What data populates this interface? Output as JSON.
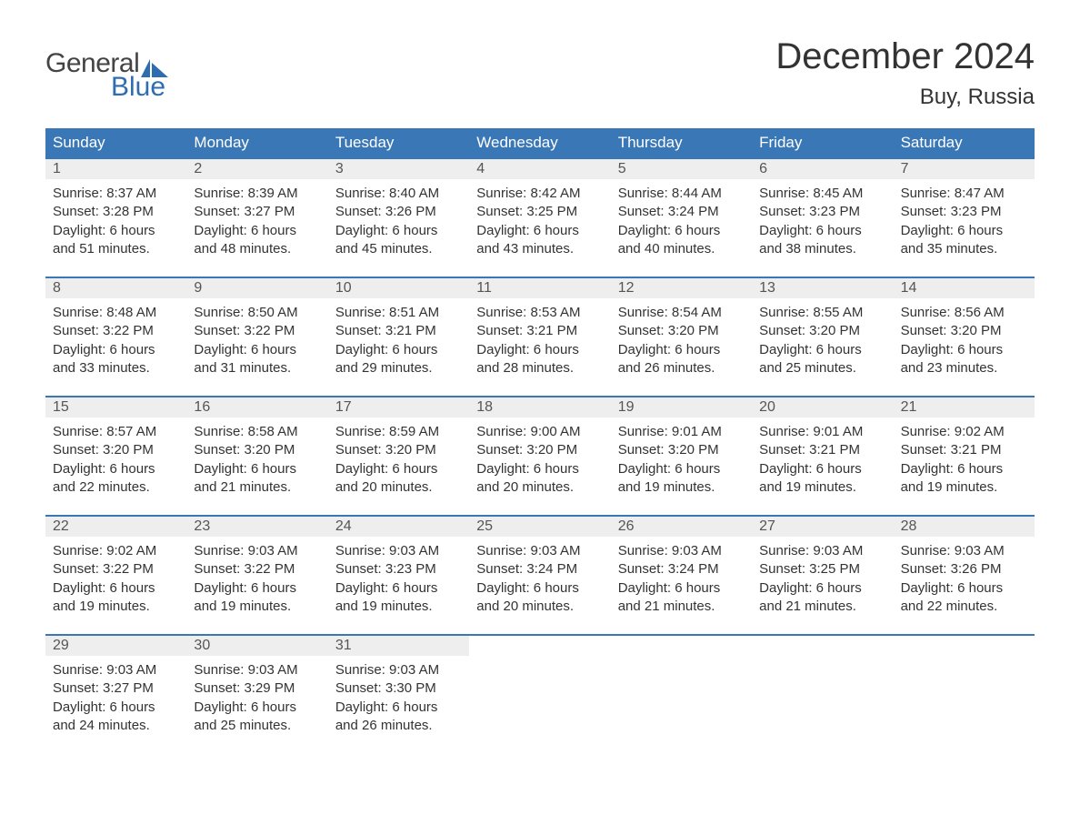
{
  "logo": {
    "text_general": "General",
    "text_blue": "Blue",
    "flag_color": "#2e6eb0",
    "general_color": "#444444",
    "blue_color": "#2e6eb0"
  },
  "header": {
    "month_title": "December 2024",
    "location": "Buy, Russia"
  },
  "colors": {
    "header_bg": "#3a77b7",
    "header_text": "#ffffff",
    "week_border": "#3a77b7",
    "daynum_bg": "#eeeeee",
    "daynum_text": "#555555",
    "body_text": "#333333",
    "page_bg": "#ffffff"
  },
  "typography": {
    "month_title_fontsize": 40,
    "location_fontsize": 24,
    "weekday_fontsize": 17,
    "daynum_fontsize": 16,
    "body_fontsize": 15,
    "font_family": "Arial"
  },
  "weekdays": [
    "Sunday",
    "Monday",
    "Tuesday",
    "Wednesday",
    "Thursday",
    "Friday",
    "Saturday"
  ],
  "weeks": [
    [
      {
        "day": "1",
        "sunrise": "Sunrise: 8:37 AM",
        "sunset": "Sunset: 3:28 PM",
        "daylight1": "Daylight: 6 hours",
        "daylight2": "and 51 minutes."
      },
      {
        "day": "2",
        "sunrise": "Sunrise: 8:39 AM",
        "sunset": "Sunset: 3:27 PM",
        "daylight1": "Daylight: 6 hours",
        "daylight2": "and 48 minutes."
      },
      {
        "day": "3",
        "sunrise": "Sunrise: 8:40 AM",
        "sunset": "Sunset: 3:26 PM",
        "daylight1": "Daylight: 6 hours",
        "daylight2": "and 45 minutes."
      },
      {
        "day": "4",
        "sunrise": "Sunrise: 8:42 AM",
        "sunset": "Sunset: 3:25 PM",
        "daylight1": "Daylight: 6 hours",
        "daylight2": "and 43 minutes."
      },
      {
        "day": "5",
        "sunrise": "Sunrise: 8:44 AM",
        "sunset": "Sunset: 3:24 PM",
        "daylight1": "Daylight: 6 hours",
        "daylight2": "and 40 minutes."
      },
      {
        "day": "6",
        "sunrise": "Sunrise: 8:45 AM",
        "sunset": "Sunset: 3:23 PM",
        "daylight1": "Daylight: 6 hours",
        "daylight2": "and 38 minutes."
      },
      {
        "day": "7",
        "sunrise": "Sunrise: 8:47 AM",
        "sunset": "Sunset: 3:23 PM",
        "daylight1": "Daylight: 6 hours",
        "daylight2": "and 35 minutes."
      }
    ],
    [
      {
        "day": "8",
        "sunrise": "Sunrise: 8:48 AM",
        "sunset": "Sunset: 3:22 PM",
        "daylight1": "Daylight: 6 hours",
        "daylight2": "and 33 minutes."
      },
      {
        "day": "9",
        "sunrise": "Sunrise: 8:50 AM",
        "sunset": "Sunset: 3:22 PM",
        "daylight1": "Daylight: 6 hours",
        "daylight2": "and 31 minutes."
      },
      {
        "day": "10",
        "sunrise": "Sunrise: 8:51 AM",
        "sunset": "Sunset: 3:21 PM",
        "daylight1": "Daylight: 6 hours",
        "daylight2": "and 29 minutes."
      },
      {
        "day": "11",
        "sunrise": "Sunrise: 8:53 AM",
        "sunset": "Sunset: 3:21 PM",
        "daylight1": "Daylight: 6 hours",
        "daylight2": "and 28 minutes."
      },
      {
        "day": "12",
        "sunrise": "Sunrise: 8:54 AM",
        "sunset": "Sunset: 3:20 PM",
        "daylight1": "Daylight: 6 hours",
        "daylight2": "and 26 minutes."
      },
      {
        "day": "13",
        "sunrise": "Sunrise: 8:55 AM",
        "sunset": "Sunset: 3:20 PM",
        "daylight1": "Daylight: 6 hours",
        "daylight2": "and 25 minutes."
      },
      {
        "day": "14",
        "sunrise": "Sunrise: 8:56 AM",
        "sunset": "Sunset: 3:20 PM",
        "daylight1": "Daylight: 6 hours",
        "daylight2": "and 23 minutes."
      }
    ],
    [
      {
        "day": "15",
        "sunrise": "Sunrise: 8:57 AM",
        "sunset": "Sunset: 3:20 PM",
        "daylight1": "Daylight: 6 hours",
        "daylight2": "and 22 minutes."
      },
      {
        "day": "16",
        "sunrise": "Sunrise: 8:58 AM",
        "sunset": "Sunset: 3:20 PM",
        "daylight1": "Daylight: 6 hours",
        "daylight2": "and 21 minutes."
      },
      {
        "day": "17",
        "sunrise": "Sunrise: 8:59 AM",
        "sunset": "Sunset: 3:20 PM",
        "daylight1": "Daylight: 6 hours",
        "daylight2": "and 20 minutes."
      },
      {
        "day": "18",
        "sunrise": "Sunrise: 9:00 AM",
        "sunset": "Sunset: 3:20 PM",
        "daylight1": "Daylight: 6 hours",
        "daylight2": "and 20 minutes."
      },
      {
        "day": "19",
        "sunrise": "Sunrise: 9:01 AM",
        "sunset": "Sunset: 3:20 PM",
        "daylight1": "Daylight: 6 hours",
        "daylight2": "and 19 minutes."
      },
      {
        "day": "20",
        "sunrise": "Sunrise: 9:01 AM",
        "sunset": "Sunset: 3:21 PM",
        "daylight1": "Daylight: 6 hours",
        "daylight2": "and 19 minutes."
      },
      {
        "day": "21",
        "sunrise": "Sunrise: 9:02 AM",
        "sunset": "Sunset: 3:21 PM",
        "daylight1": "Daylight: 6 hours",
        "daylight2": "and 19 minutes."
      }
    ],
    [
      {
        "day": "22",
        "sunrise": "Sunrise: 9:02 AM",
        "sunset": "Sunset: 3:22 PM",
        "daylight1": "Daylight: 6 hours",
        "daylight2": "and 19 minutes."
      },
      {
        "day": "23",
        "sunrise": "Sunrise: 9:03 AM",
        "sunset": "Sunset: 3:22 PM",
        "daylight1": "Daylight: 6 hours",
        "daylight2": "and 19 minutes."
      },
      {
        "day": "24",
        "sunrise": "Sunrise: 9:03 AM",
        "sunset": "Sunset: 3:23 PM",
        "daylight1": "Daylight: 6 hours",
        "daylight2": "and 19 minutes."
      },
      {
        "day": "25",
        "sunrise": "Sunrise: 9:03 AM",
        "sunset": "Sunset: 3:24 PM",
        "daylight1": "Daylight: 6 hours",
        "daylight2": "and 20 minutes."
      },
      {
        "day": "26",
        "sunrise": "Sunrise: 9:03 AM",
        "sunset": "Sunset: 3:24 PM",
        "daylight1": "Daylight: 6 hours",
        "daylight2": "and 21 minutes."
      },
      {
        "day": "27",
        "sunrise": "Sunrise: 9:03 AM",
        "sunset": "Sunset: 3:25 PM",
        "daylight1": "Daylight: 6 hours",
        "daylight2": "and 21 minutes."
      },
      {
        "day": "28",
        "sunrise": "Sunrise: 9:03 AM",
        "sunset": "Sunset: 3:26 PM",
        "daylight1": "Daylight: 6 hours",
        "daylight2": "and 22 minutes."
      }
    ],
    [
      {
        "day": "29",
        "sunrise": "Sunrise: 9:03 AM",
        "sunset": "Sunset: 3:27 PM",
        "daylight1": "Daylight: 6 hours",
        "daylight2": "and 24 minutes."
      },
      {
        "day": "30",
        "sunrise": "Sunrise: 9:03 AM",
        "sunset": "Sunset: 3:29 PM",
        "daylight1": "Daylight: 6 hours",
        "daylight2": "and 25 minutes."
      },
      {
        "day": "31",
        "sunrise": "Sunrise: 9:03 AM",
        "sunset": "Sunset: 3:30 PM",
        "daylight1": "Daylight: 6 hours",
        "daylight2": "and 26 minutes."
      },
      {
        "empty": true
      },
      {
        "empty": true
      },
      {
        "empty": true
      },
      {
        "empty": true
      }
    ]
  ]
}
